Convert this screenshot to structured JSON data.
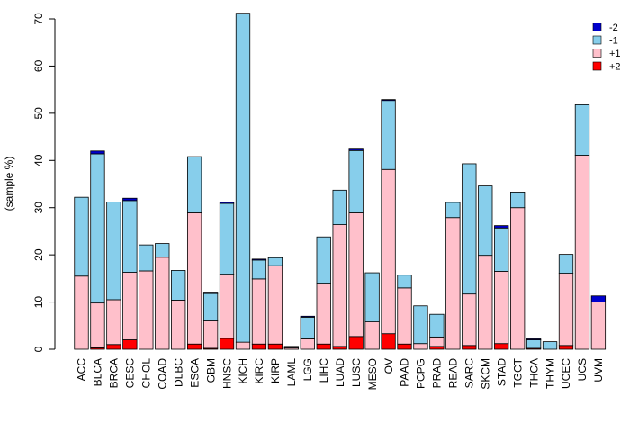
{
  "chart_data": {
    "type": "bar",
    "stacked": true,
    "title": "",
    "xlabel": "",
    "ylabel": "(sample %)",
    "ylim": [
      0,
      70
    ],
    "yticks": [
      0,
      10,
      20,
      30,
      40,
      50,
      60,
      70
    ],
    "ytick_labels": [
      "0",
      "10",
      "20",
      "30",
      "40",
      "50",
      "60",
      "70"
    ],
    "grid": false,
    "legend_position": "top-right",
    "categories": [
      "ACC",
      "BLCA",
      "BRCA",
      "CESC",
      "CHOL",
      "COAD",
      "DLBC",
      "ESCA",
      "GBM",
      "HNSC",
      "KICH",
      "KIRC",
      "KIRP",
      "LAML",
      "LGG",
      "LIHC",
      "LUAD",
      "LUSC",
      "MESO",
      "OV",
      "PAAD",
      "PCPG",
      "PRAD",
      "READ",
      "SARC",
      "SKCM",
      "STAD",
      "TGCT",
      "THCA",
      "THYM",
      "UCEC",
      "UCS",
      "UVM"
    ],
    "series": [
      {
        "name": "+2",
        "color": "#FF0000",
        "values": [
          0,
          0.3,
          1.0,
          2.0,
          0,
          0,
          0,
          1.1,
          0.2,
          2.3,
          0,
          1.1,
          1.1,
          0,
          0,
          1.1,
          0.6,
          2.7,
          0,
          3.3,
          1.1,
          0,
          0.6,
          0,
          0.8,
          0,
          1.2,
          0,
          0.2,
          0,
          0.8,
          0,
          0
        ]
      },
      {
        "name": "+1",
        "color": "#FFC0CB",
        "values": [
          15.5,
          9.5,
          9.5,
          14.3,
          16.6,
          19.5,
          10.4,
          27.8,
          5.8,
          13.6,
          1.5,
          13.8,
          16.6,
          0.3,
          2.2,
          12.9,
          25.8,
          26.2,
          5.8,
          34.8,
          11.9,
          1.2,
          2.0,
          27.9,
          10.9,
          19.9,
          15.3,
          30.0,
          0,
          0,
          15.3,
          41.1,
          10.0
        ]
      },
      {
        "name": "-1",
        "color": "#87CEEB",
        "values": [
          16.7,
          31.6,
          20.7,
          15.2,
          5.5,
          2.9,
          6.3,
          11.9,
          5.8,
          15.0,
          69.7,
          4.0,
          1.7,
          0,
          4.6,
          9.8,
          7.3,
          13.2,
          10.4,
          14.6,
          2.7,
          8.0,
          4.8,
          3.2,
          27.6,
          14.7,
          9.2,
          3.3,
          1.8,
          1.6,
          4.0,
          10.7,
          0
        ]
      },
      {
        "name": "-2",
        "color": "#0000CD",
        "values": [
          0,
          0.6,
          0,
          0.5,
          0,
          0,
          0,
          0,
          0.3,
          0.3,
          0,
          0.2,
          0,
          0.3,
          0.2,
          0,
          0,
          0.3,
          0,
          0.2,
          0,
          0,
          0,
          0,
          0,
          0,
          0.5,
          0,
          0.2,
          0,
          0,
          0,
          1.3
        ]
      }
    ],
    "legend": [
      {
        "label": "-2",
        "color": "#0000CD"
      },
      {
        "label": "-1",
        "color": "#87CEEB"
      },
      {
        "label": "+1",
        "color": "#FFC0CB"
      },
      {
        "label": "+2",
        "color": "#FF0000"
      }
    ]
  }
}
